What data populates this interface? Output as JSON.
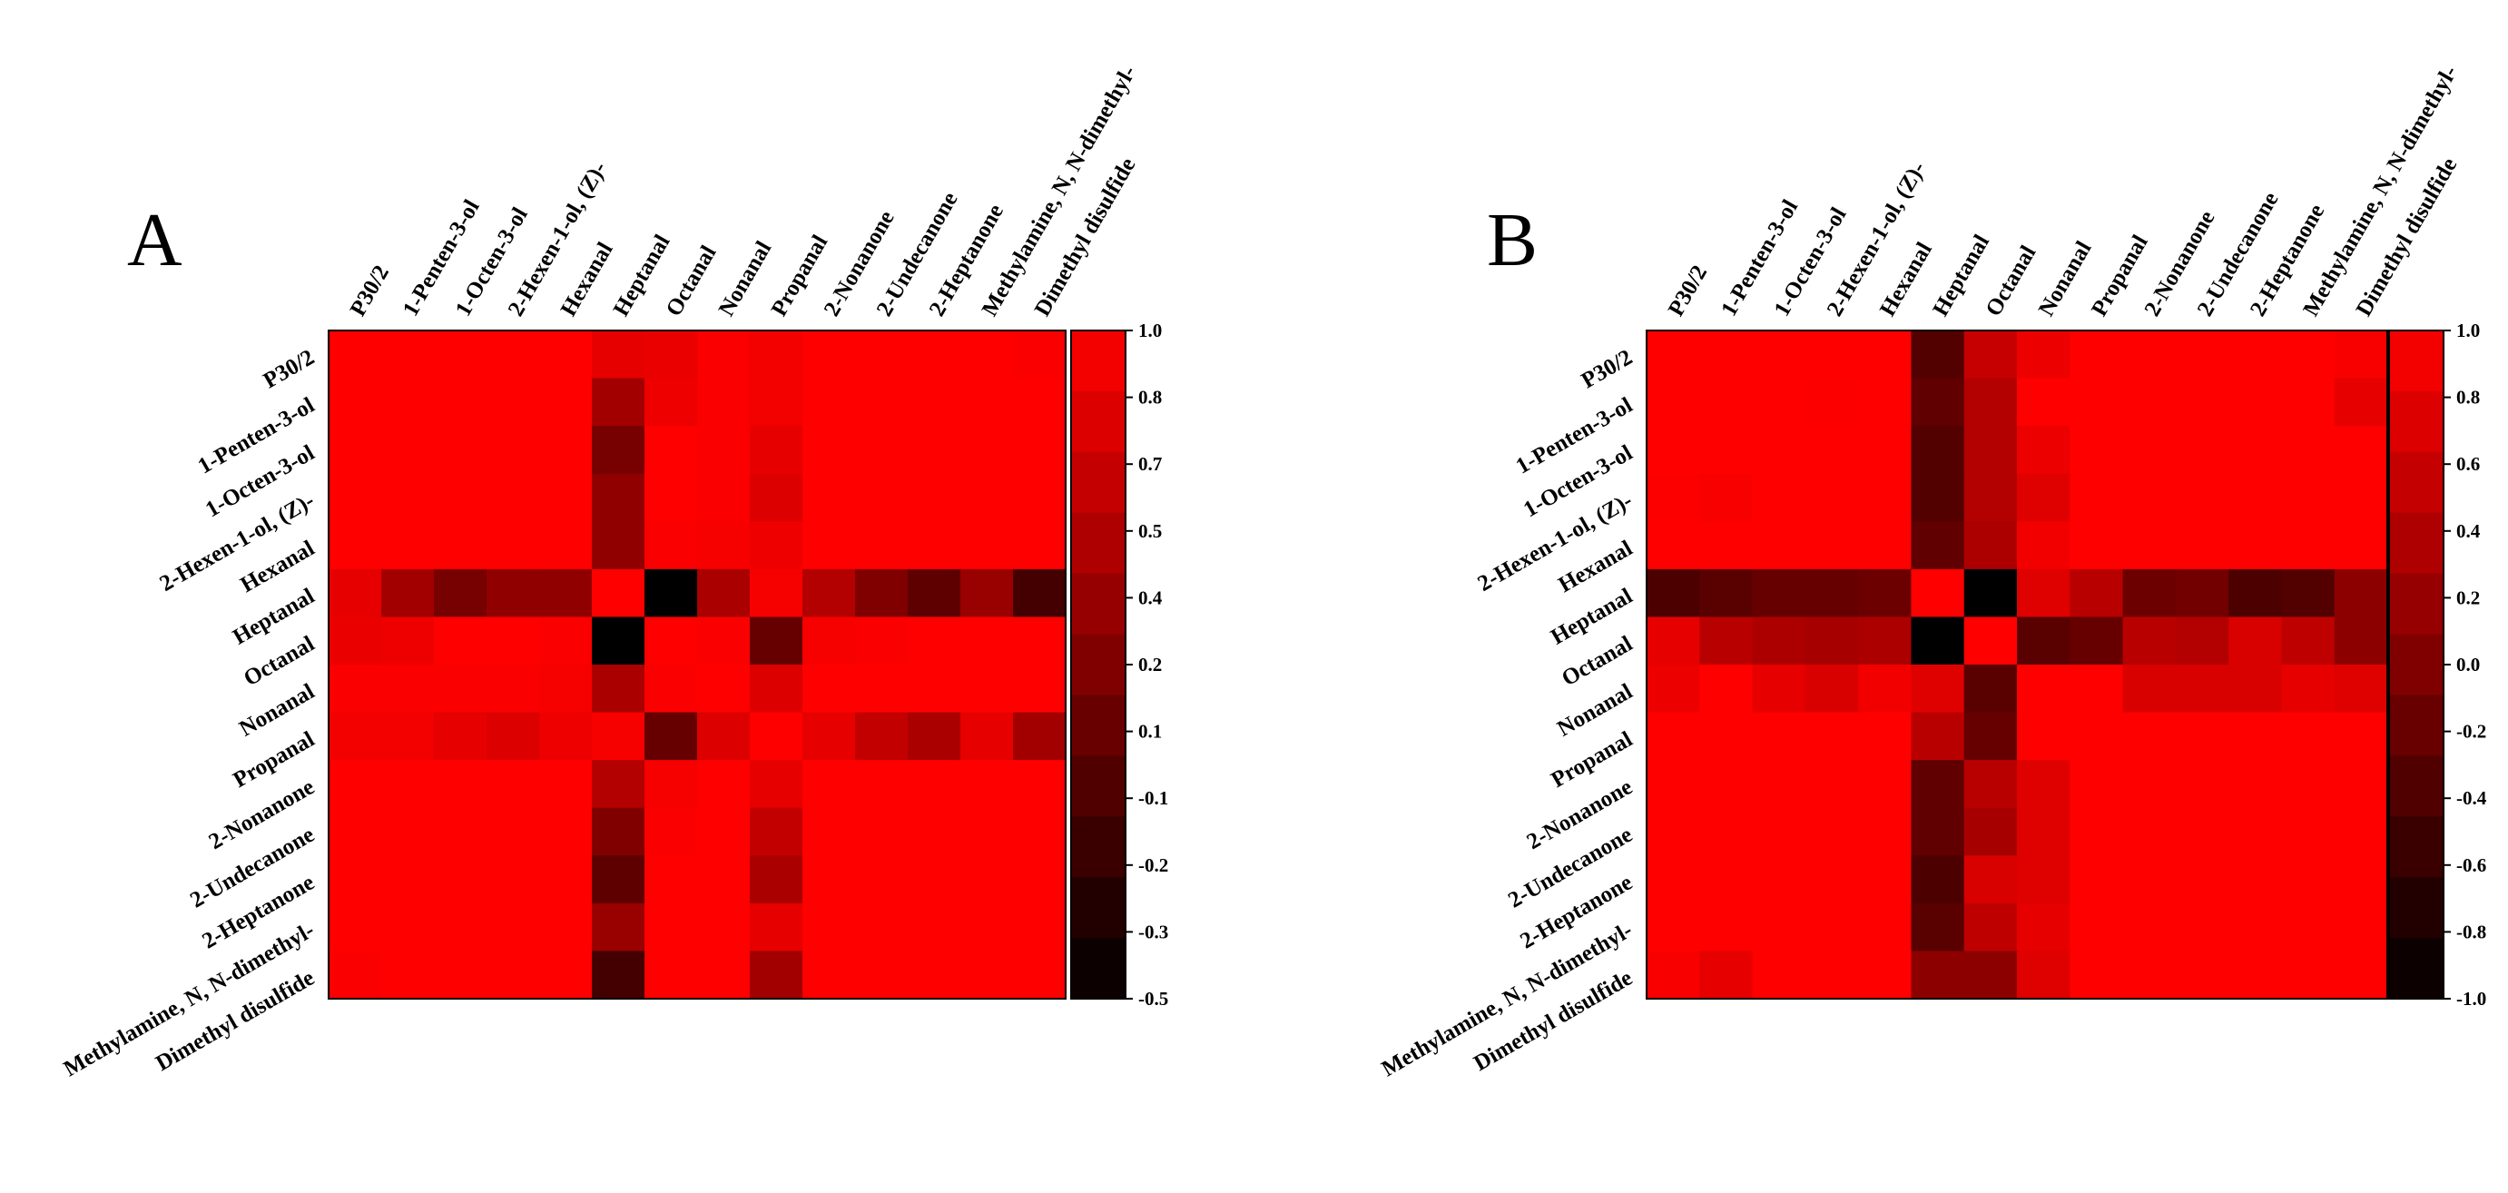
{
  "chart_data": [
    {
      "type": "heatmap",
      "panel_label": "A",
      "labels": [
        "P30/2",
        "1-Penten-3-ol",
        "1-Octen-3-ol",
        "2-Hexen-1-ol, (Z)-",
        "Hexanal",
        "Heptanal",
        "Octanal",
        "Nonanal",
        "Propanal",
        "2-Nonanone",
        "2-Undecanone",
        "2-Heptanone",
        "Methylamine, N, N-dimethyl-",
        "Dimethyl disulfide"
      ],
      "values": [
        [
          1.0,
          1.0,
          1.0,
          1.0,
          1.0,
          0.85,
          0.88,
          0.97,
          0.93,
          1.0,
          1.0,
          1.0,
          1.0,
          0.97
        ],
        [
          1.0,
          1.0,
          1.0,
          1.0,
          1.0,
          0.45,
          0.9,
          0.97,
          0.93,
          1.0,
          1.0,
          1.0,
          1.0,
          1.0
        ],
        [
          1.0,
          1.0,
          1.0,
          1.0,
          1.0,
          0.2,
          1.0,
          0.97,
          0.85,
          1.0,
          1.0,
          1.0,
          1.0,
          1.0
        ],
        [
          1.0,
          1.0,
          1.0,
          1.0,
          1.0,
          0.35,
          1.0,
          0.97,
          0.8,
          1.0,
          1.0,
          1.0,
          1.0,
          1.0
        ],
        [
          1.0,
          1.0,
          1.0,
          1.0,
          1.0,
          0.35,
          0.97,
          0.95,
          0.9,
          1.0,
          1.0,
          1.0,
          1.0,
          1.0
        ],
        [
          0.85,
          0.45,
          0.2,
          0.35,
          0.35,
          1.0,
          -0.5,
          0.5,
          0.95,
          0.55,
          0.25,
          0.05,
          0.4,
          -0.1
        ],
        [
          0.88,
          0.9,
          1.0,
          1.0,
          0.97,
          -0.5,
          1.0,
          0.97,
          0.1,
          0.95,
          0.97,
          1.0,
          1.0,
          1.0
        ],
        [
          0.97,
          0.97,
          0.97,
          0.97,
          0.95,
          0.5,
          0.97,
          1.0,
          0.8,
          1.0,
          1.0,
          1.0,
          1.0,
          1.0
        ],
        [
          0.93,
          0.93,
          0.85,
          0.8,
          0.9,
          0.95,
          0.1,
          0.8,
          1.0,
          0.85,
          0.65,
          0.5,
          0.85,
          0.45
        ],
        [
          1.0,
          1.0,
          1.0,
          1.0,
          1.0,
          0.55,
          0.95,
          1.0,
          0.85,
          1.0,
          1.0,
          1.0,
          1.0,
          1.0
        ],
        [
          1.0,
          1.0,
          1.0,
          1.0,
          1.0,
          0.25,
          0.97,
          1.0,
          0.65,
          1.0,
          1.0,
          1.0,
          1.0,
          1.0
        ],
        [
          1.0,
          1.0,
          1.0,
          1.0,
          1.0,
          0.05,
          1.0,
          1.0,
          0.5,
          1.0,
          1.0,
          1.0,
          1.0,
          1.0
        ],
        [
          1.0,
          1.0,
          1.0,
          1.0,
          1.0,
          0.4,
          1.0,
          1.0,
          0.85,
          1.0,
          1.0,
          1.0,
          1.0,
          1.0
        ],
        [
          0.97,
          1.0,
          1.0,
          1.0,
          1.0,
          -0.1,
          1.0,
          1.0,
          0.45,
          1.0,
          1.0,
          1.0,
          1.0,
          1.0
        ]
      ],
      "colorbar": {
        "min": -0.5,
        "max": 1.0,
        "ticks": [
          "1.0",
          "0.8",
          "0.7",
          "0.5",
          "0.4",
          "0.2",
          "0.1",
          "-0.1",
          "-0.2",
          "-0.3",
          "-0.5"
        ],
        "low_color": "#000000",
        "high_color": "#ff0000"
      }
    },
    {
      "type": "heatmap",
      "panel_label": "B",
      "labels": [
        "P30/2",
        "1-Penten-3-ol",
        "1-Octen-3-ol",
        "2-Hexen-1-ol, (Z)-",
        "Hexanal",
        "Heptanal",
        "Octanal",
        "Nonanal",
        "Propanal",
        "2-Nonanone",
        "2-Undecanone",
        "2-Heptanone",
        "Methylamine, N, N-dimethyl-",
        "Dimethyl disulfide"
      ],
      "values": [
        [
          1.0,
          1.0,
          1.0,
          1.0,
          1.0,
          -0.35,
          0.55,
          0.85,
          1.0,
          1.0,
          1.0,
          1.0,
          1.0,
          0.95
        ],
        [
          1.0,
          1.0,
          1.0,
          0.98,
          1.0,
          -0.25,
          0.4,
          1.0,
          1.0,
          1.0,
          1.0,
          1.0,
          1.0,
          0.8
        ],
        [
          1.0,
          1.0,
          1.0,
          1.0,
          1.0,
          -0.35,
          0.4,
          0.85,
          1.0,
          1.0,
          1.0,
          1.0,
          1.0,
          1.0
        ],
        [
          0.98,
          0.95,
          1.0,
          1.0,
          1.0,
          -0.35,
          0.4,
          0.75,
          1.0,
          1.0,
          1.0,
          1.0,
          1.0,
          1.0
        ],
        [
          1.0,
          1.0,
          1.0,
          1.0,
          1.0,
          -0.25,
          0.35,
          0.9,
          1.0,
          1.0,
          1.0,
          1.0,
          1.0,
          1.0
        ],
        [
          -0.4,
          -0.3,
          -0.2,
          -0.2,
          -0.15,
          1.0,
          -1.0,
          0.75,
          0.45,
          -0.15,
          -0.1,
          -0.4,
          -0.35,
          0.1
        ],
        [
          0.8,
          0.45,
          0.35,
          0.3,
          0.35,
          -1.0,
          1.0,
          -0.3,
          -0.2,
          0.45,
          0.4,
          0.7,
          0.5,
          0.1
        ],
        [
          0.85,
          1.0,
          0.8,
          0.7,
          0.9,
          0.75,
          -0.3,
          1.0,
          1.0,
          0.7,
          0.7,
          0.7,
          0.8,
          0.75
        ],
        [
          1.0,
          1.0,
          1.0,
          1.0,
          1.0,
          0.45,
          -0.2,
          1.0,
          1.0,
          1.0,
          1.0,
          1.0,
          1.0,
          1.0
        ],
        [
          1.0,
          1.0,
          1.0,
          1.0,
          1.0,
          -0.25,
          0.45,
          0.75,
          1.0,
          1.0,
          1.0,
          1.0,
          1.0,
          1.0
        ],
        [
          1.0,
          1.0,
          1.0,
          1.0,
          1.0,
          -0.25,
          0.3,
          0.75,
          1.0,
          1.0,
          1.0,
          1.0,
          1.0,
          1.0
        ],
        [
          1.0,
          1.0,
          1.0,
          1.0,
          1.0,
          -0.4,
          0.7,
          0.75,
          1.0,
          1.0,
          1.0,
          1.0,
          1.0,
          1.0
        ],
        [
          1.0,
          1.0,
          1.0,
          1.0,
          1.0,
          -0.3,
          0.5,
          0.8,
          1.0,
          1.0,
          1.0,
          1.0,
          1.0,
          1.0
        ],
        [
          0.95,
          0.8,
          1.0,
          1.0,
          1.0,
          0.1,
          0.1,
          0.75,
          1.0,
          1.0,
          1.0,
          1.0,
          1.0,
          1.0
        ]
      ],
      "colorbar": {
        "min": -1.0,
        "max": 1.0,
        "ticks": [
          "1.0",
          "0.8",
          "0.6",
          "0.4",
          "0.2",
          "0.0",
          "-0.2",
          "-0.4",
          "-0.6",
          "-0.8",
          "-1.0"
        ],
        "low_color": "#000000",
        "high_color": "#ff0000"
      }
    }
  ]
}
